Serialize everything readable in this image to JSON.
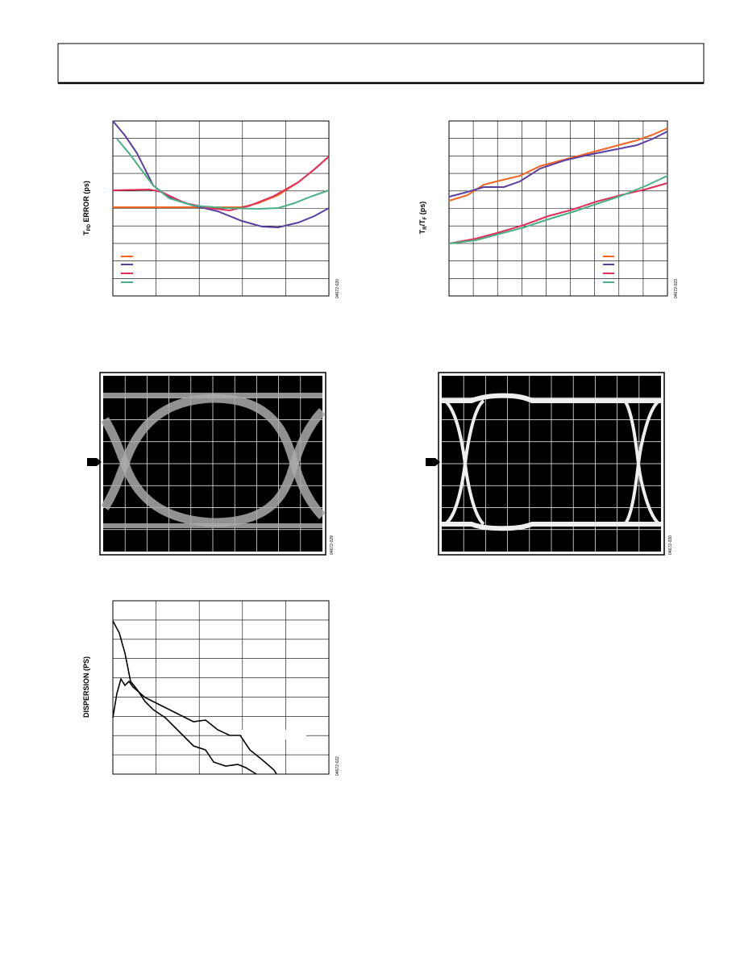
{
  "figures": [
    {
      "y_label": [
        "T",
        "PD",
        " ERROR (ps)"
      ],
      "figure_id": "04672-020"
    },
    {
      "y_label": [
        "T",
        "R",
        "/T",
        "F",
        " (ps)"
      ],
      "figure_id": "04672-023"
    },
    {
      "figure_id": "04672-029"
    },
    {
      "figure_id": "04672-030"
    },
    {
      "y_label": [
        "DISPERSION (PS)"
      ],
      "figure_id": "04672-022"
    }
  ]
}
